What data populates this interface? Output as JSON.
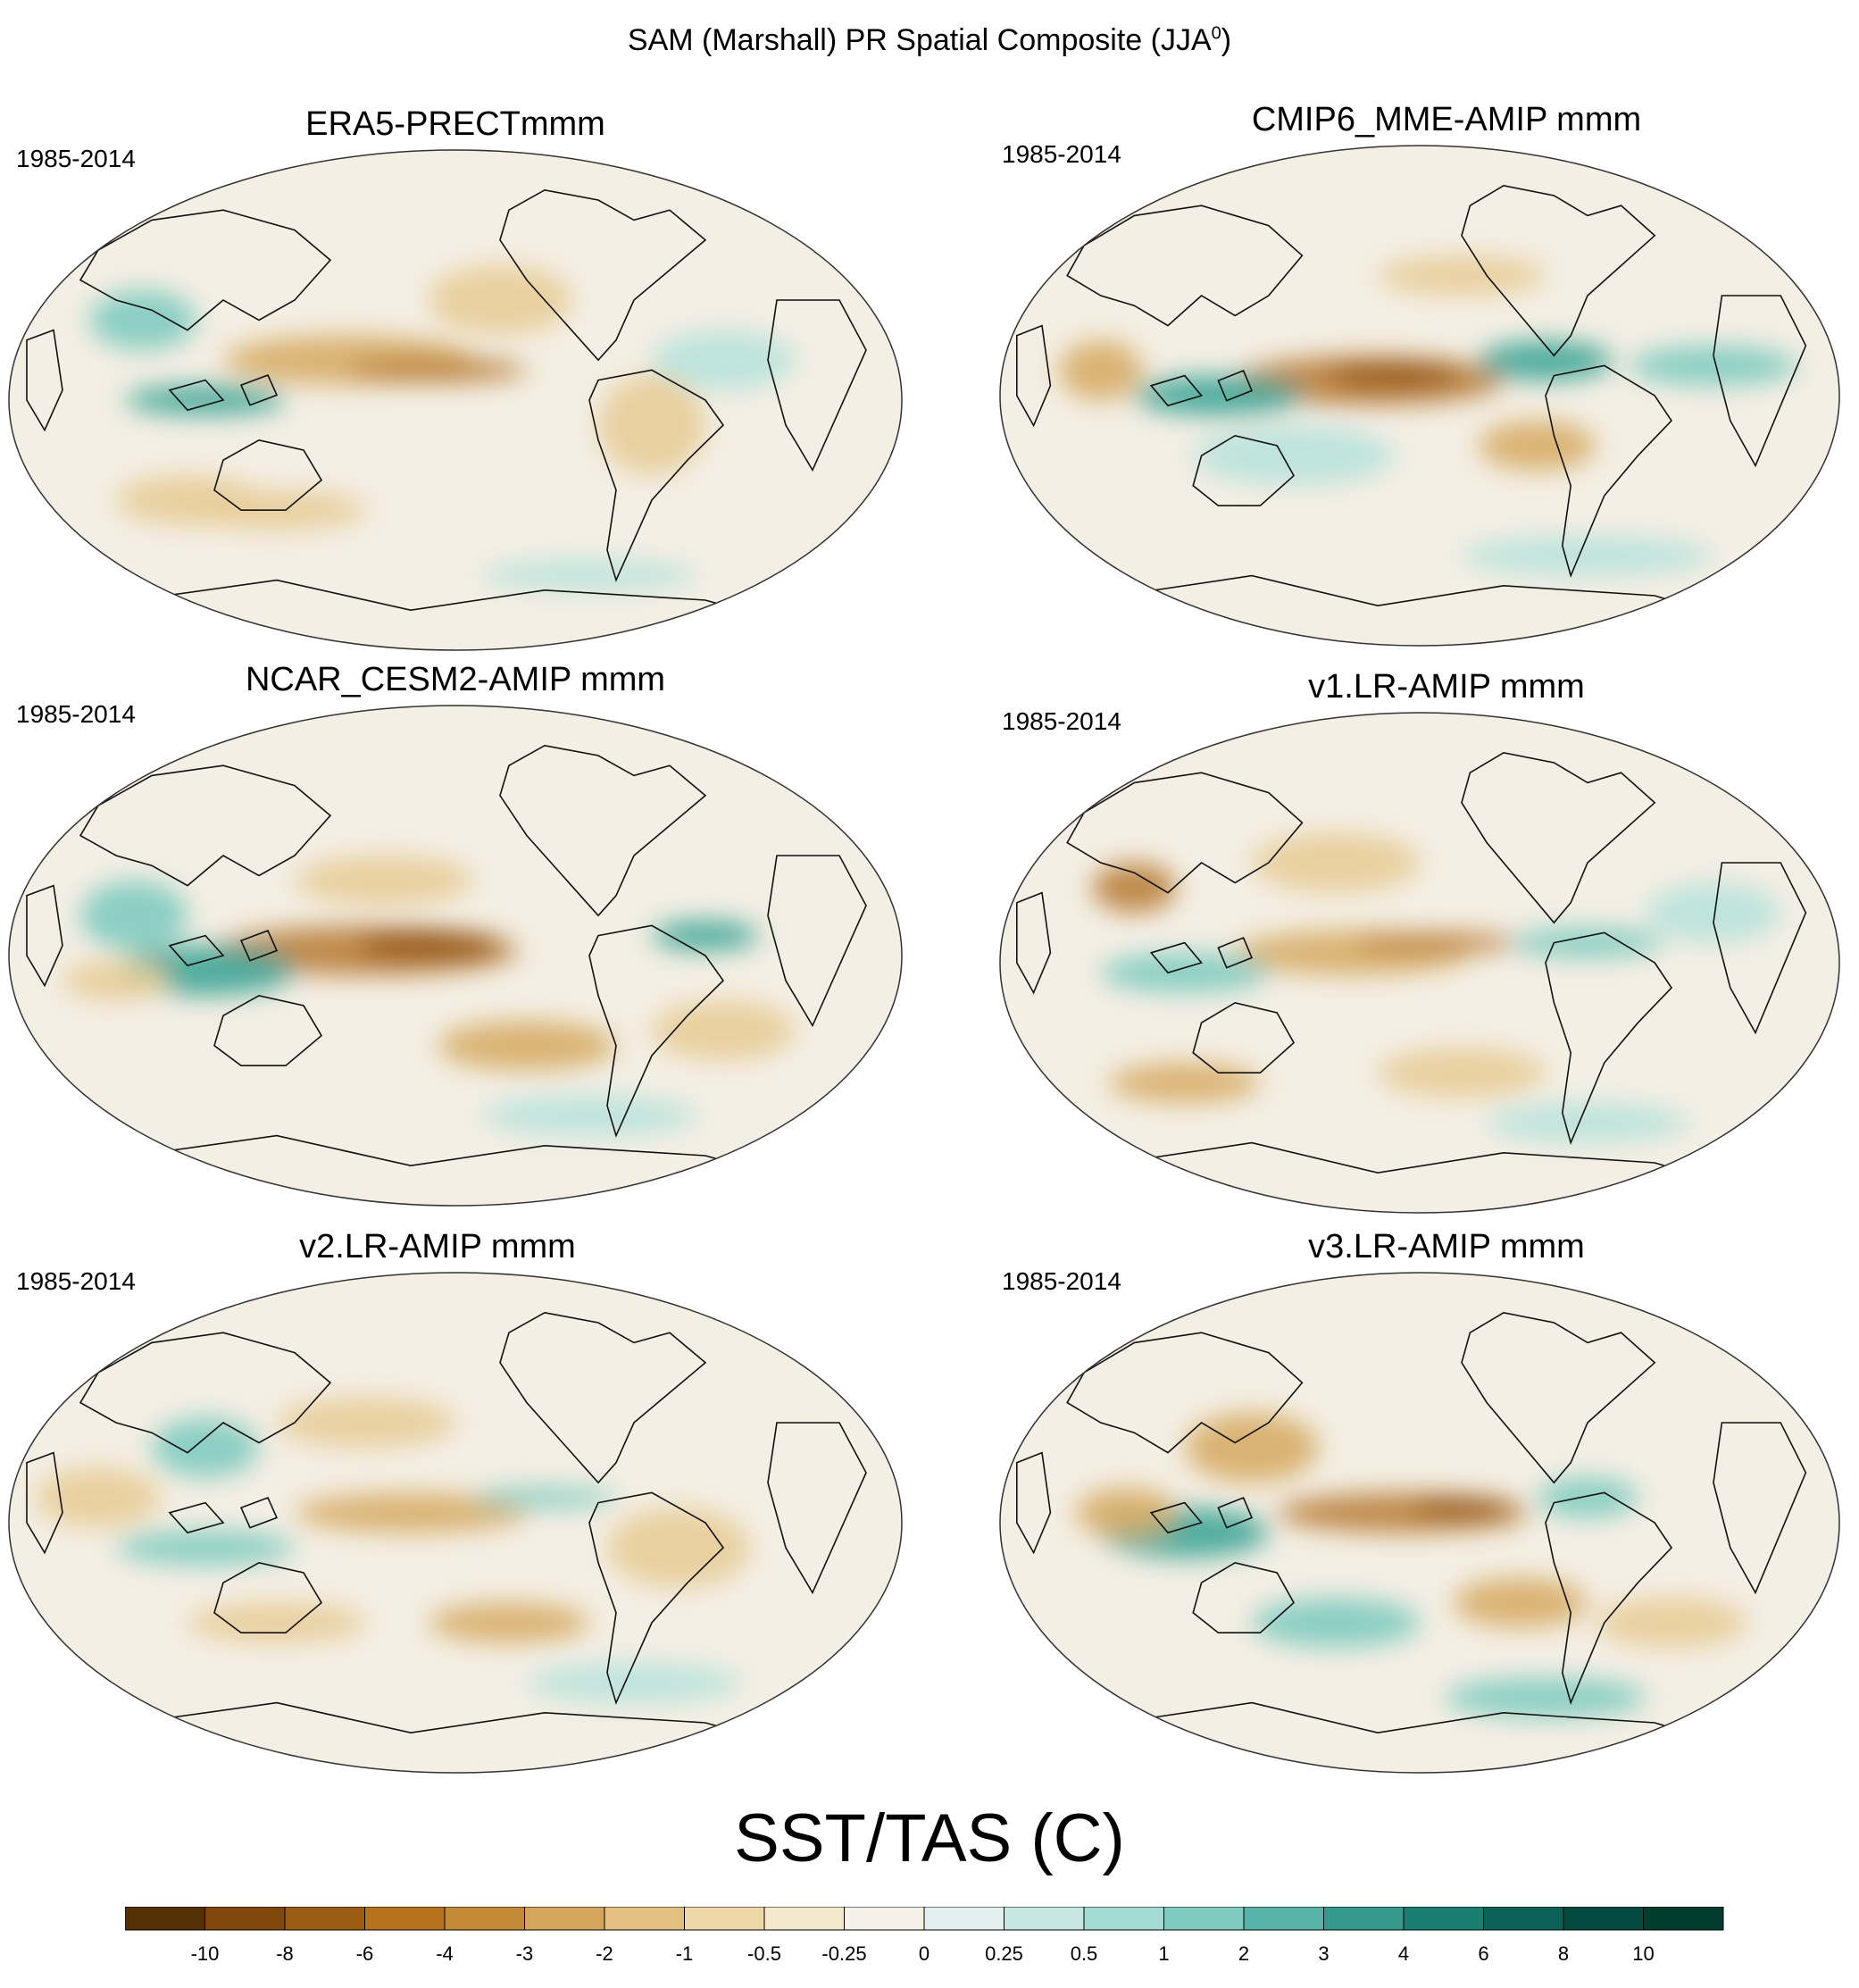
{
  "figure": {
    "title_main": "SAM (Marshall) PR Spatial Composite (JJA",
    "title_sup": "0",
    "title_end": ")",
    "colorbar_title": "SST/TAS (C)"
  },
  "chart_data": [
    {
      "type": "heatmap",
      "title": "ERA5-PRECTmmm",
      "period": "1985-2014"
    },
    {
      "type": "heatmap",
      "title": "CMIP6_MME-AMIP  mmm",
      "period": "1985-2014"
    },
    {
      "type": "heatmap",
      "title": "NCAR_CESM2-AMIP  mmm",
      "period": "1985-2014"
    },
    {
      "type": "heatmap",
      "title": "v1.LR-AMIP  mmm",
      "period": "1985-2014"
    },
    {
      "type": "heatmap",
      "title": "v2.LR-AMIP  mmm",
      "period": "1985-2014"
    },
    {
      "type": "heatmap",
      "title": "v3.LR-AMIP  mmm",
      "period": "1985-2014"
    }
  ],
  "colorbar": {
    "labels": [
      "-10",
      "-8",
      "-6",
      "-4",
      "-3",
      "-2",
      "-1",
      "-0.5",
      "-0.25",
      "0",
      "0.25",
      "0.5",
      "1",
      "2",
      "3",
      "4",
      "6",
      "8",
      "10"
    ],
    "colors": [
      "#543005",
      "#7f470b",
      "#9b5b12",
      "#b5721f",
      "#c48a36",
      "#d5a55a",
      "#e3c07f",
      "#eed8a7",
      "#f4e9cd",
      "#f5f1e8",
      "#e2f0ee",
      "#c6e8e3",
      "#a4dbd3",
      "#7fcbc0",
      "#57b4a8",
      "#35998d",
      "#1a7d71",
      "#0b6358",
      "#054a3f",
      "#003c30"
    ]
  }
}
